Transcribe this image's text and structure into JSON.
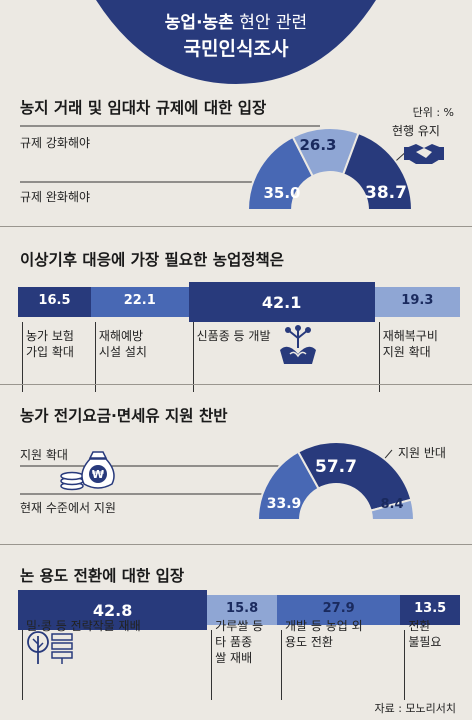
{
  "header": {
    "title_line1_bold": "농업·농촌",
    "title_line1_light": " 현안 관련",
    "title_line2": "국민인식조사"
  },
  "colors": {
    "dark": "#283a7c",
    "mid": "#4868b4",
    "light": "#8fa6d4",
    "bg": "#ece9e3"
  },
  "unit_label": "단위 : %",
  "source": "자료 : 모노리서치",
  "icons": [
    "handshake-icon",
    "sprout-icon",
    "money-bag-icon",
    "plant-pot-icon"
  ],
  "chart_data": [
    {
      "type": "semi-donut",
      "title": "농지 거래 및 임대차 규제에 대한 입장",
      "segments": [
        {
          "label": "규제 완화해야",
          "value": 35.0,
          "display": "35.0",
          "color": "#4868b4"
        },
        {
          "label": "규제 강화해야",
          "value": 26.3,
          "display": "26.3",
          "color": "#8fa6d4"
        },
        {
          "label": "현행 유지",
          "value": 38.7,
          "display": "38.7",
          "color": "#283a7c"
        }
      ]
    },
    {
      "type": "stacked-bar",
      "title": "이상기후 대응에 가장 필요한 농업정책은",
      "segments": [
        {
          "label": "농가 보험\n가입 확대",
          "value": 16.5,
          "display": "16.5",
          "color": "#283a7c"
        },
        {
          "label": "재해예방\n시설 설치",
          "value": 22.1,
          "display": "22.1",
          "color": "#4868b4"
        },
        {
          "label": "신품종 등 개발",
          "value": 42.1,
          "display": "42.1",
          "color": "#283a7c"
        },
        {
          "label": "재해복구비\n지원 확대",
          "value": 19.3,
          "display": "19.3",
          "color": "#8fa6d4"
        }
      ]
    },
    {
      "type": "semi-donut",
      "title": "농가 전기요금·면세유 지원 찬반",
      "segments": [
        {
          "label": "현재 수준에서 지원",
          "value": 33.9,
          "display": "33.9",
          "color": "#4868b4"
        },
        {
          "label": "지원 확대",
          "value": 57.7,
          "display": "57.7",
          "color": "#283a7c"
        },
        {
          "label": "지원 반대",
          "value": 8.4,
          "display": "8.4",
          "color": "#8fa6d4"
        }
      ]
    },
    {
      "type": "stacked-bar",
      "title": "논 용도 전환에 대한 입장",
      "segments": [
        {
          "label": "밀·콩 등 전략작물 재배",
          "value": 42.8,
          "display": "42.8",
          "color": "#283a7c"
        },
        {
          "label": "가루쌀 등\n타 품종\n쌀 재배",
          "value": 15.8,
          "display": "15.8",
          "color": "#8fa6d4"
        },
        {
          "label": "개발 등 농업 외\n용도 전환",
          "value": 27.9,
          "display": "27.9",
          "color": "#4868b4"
        },
        {
          "label": "전환\n불필요",
          "value": 13.5,
          "display": "13.5",
          "color": "#283a7c"
        }
      ]
    }
  ]
}
